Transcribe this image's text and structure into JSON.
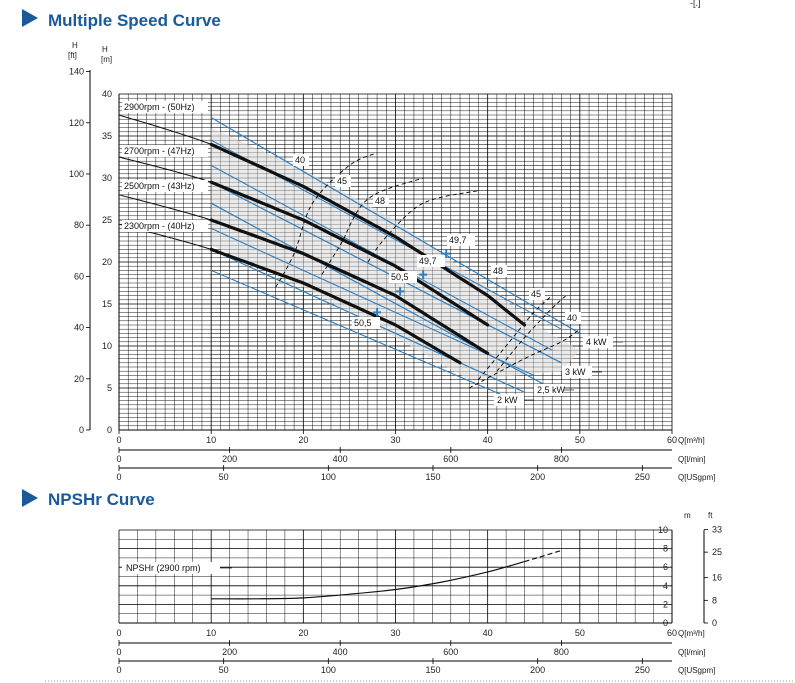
{
  "header_mark": "-[.]",
  "multiple_speed": {
    "title": "Multiple Speed Curve",
    "axis_left_ft": {
      "label": "H",
      "unit": "[ft]",
      "ticks": [
        0,
        20,
        40,
        60,
        80,
        100,
        120,
        140
      ]
    },
    "axis_left_m": {
      "label": "H",
      "unit": "[m]",
      "ticks": [
        0,
        5,
        10,
        15,
        20,
        25,
        30,
        35,
        40
      ]
    },
    "axis_q_m3h": {
      "label": "Q[m³/h]",
      "ticks": [
        0,
        10,
        20,
        30,
        40,
        50,
        60
      ]
    },
    "axis_q_lmin": {
      "label": "Q[l/min]",
      "ticks": [
        0,
        200,
        400,
        600,
        800
      ]
    },
    "axis_q_usgpm": {
      "label": "Q[USgpm]",
      "ticks": [
        0,
        50,
        100,
        150,
        200,
        250
      ]
    },
    "speed_labels": [
      "2900rpm - (50Hz)",
      "2700rpm - (47Hz)",
      "2500rpm - (43Hz)",
      "2300rpm - (40Hz)"
    ],
    "power_labels": [
      "4 kW",
      "3 kW",
      "2,5 kW",
      "2 kW"
    ],
    "efficiency_labels_left": [
      "40",
      "45",
      "48",
      "49,7",
      "50,5"
    ],
    "efficiency_labels_right": [
      "49,7",
      "48",
      "45",
      "40",
      "50,5"
    ]
  },
  "npshr": {
    "title": "NPSHr Curve",
    "curve_label": "NPSHr (2900 rpm)",
    "axis_right_m": {
      "label": "m",
      "ticks": [
        0,
        2,
        4,
        6,
        8,
        10
      ]
    },
    "axis_right_ft": {
      "label": "ft",
      "ticks": [
        0,
        8,
        16,
        25,
        33
      ]
    },
    "axis_q_m3h": {
      "label": "Q[m³/h]",
      "ticks": [
        0,
        10,
        20,
        30,
        40,
        50,
        60
      ]
    },
    "axis_q_lmin": {
      "label": "Q[l/min]",
      "ticks": [
        0,
        200,
        400,
        600,
        800
      ]
    },
    "axis_q_usgpm": {
      "label": "Q[USgpm]",
      "ticks": [
        0,
        50,
        100,
        150,
        200,
        250
      ]
    }
  },
  "colors": {
    "title": "#1a5a9a",
    "power_line": "#2f7fc1",
    "curve": "#111111",
    "grid": "#000000",
    "band": "#e6e6e6",
    "marker": "#2f7fc1"
  },
  "chart_data": [
    {
      "type": "line",
      "title": "Multiple Speed Curve",
      "xlabel": "Q[m³/h]",
      "ylabel": "H [m]",
      "xlim": [
        0,
        60
      ],
      "ylim": [
        0,
        40
      ],
      "series": [
        {
          "name": "2900rpm - (50Hz)",
          "x": [
            0,
            10,
            20,
            30,
            40,
            44
          ],
          "y": [
            37.5,
            34,
            29,
            23,
            16,
            12.5
          ],
          "op_x": [
            10,
            44
          ]
        },
        {
          "name": "2700rpm - (47Hz)",
          "x": [
            0,
            10,
            20,
            30,
            40
          ],
          "y": [
            32.5,
            29.5,
            25,
            19.5,
            12.5
          ],
          "op_x": [
            10,
            40.5
          ]
        },
        {
          "name": "2500rpm - (43Hz)",
          "x": [
            0,
            10,
            20,
            30,
            38
          ],
          "y": [
            28,
            25,
            21,
            16,
            10.5
          ],
          "op_x": [
            10,
            40
          ]
        },
        {
          "name": "2300rpm - (40Hz)",
          "x": [
            0,
            10,
            20,
            30,
            37
          ],
          "y": [
            24.5,
            21.5,
            17.5,
            12.5,
            8
          ],
          "op_x": [
            10,
            37
          ]
        }
      ],
      "power_lines": [
        {
          "name": "4 kW",
          "x": [
            10,
            50
          ],
          "y": [
            37,
            10
          ]
        },
        {
          "name": "3 kW",
          "x": [
            10,
            48
          ],
          "y": [
            29,
            8
          ]
        },
        {
          "name": "2,5 kW",
          "x": [
            10,
            46
          ],
          "y": [
            27,
            6.5
          ]
        },
        {
          "name": "2 kW",
          "x": [
            10,
            44
          ],
          "y": [
            21,
            4.5
          ]
        }
      ],
      "efficiency_lines": [
        {
          "name": "40",
          "x": [
            17,
            25,
            28,
            40,
            48
          ],
          "y": [
            17,
            31,
            35,
            16,
            12
          ]
        },
        {
          "name": "45",
          "x": [
            22,
            33,
            43
          ],
          "y": [
            18,
            30,
            14
          ]
        },
        {
          "name": "48",
          "x": [
            27,
            39,
            45,
            42
          ],
          "y": [
            20,
            28,
            18,
            8
          ]
        },
        {
          "name": "49,7",
          "x": [
            35,
            35
          ],
          "y": [
            22,
            21
          ]
        },
        {
          "name": "50,5",
          "x": [
            28,
            31.5
          ],
          "y": [
            14.5,
            17
          ]
        }
      ],
      "efficiency_markers": [
        {
          "name": "49,7",
          "x": 35.5,
          "y": 21
        },
        {
          "name": "49,7",
          "x": 33,
          "y": 18.5
        },
        {
          "name": "50,5",
          "x": 30.5,
          "y": 16.5
        },
        {
          "name": "50,5",
          "x": 28,
          "y": 14
        }
      ]
    },
    {
      "type": "line",
      "title": "NPSHr Curve",
      "xlabel": "Q[m³/h]",
      "ylabel": "m",
      "xlim": [
        0,
        60
      ],
      "ylim": [
        0,
        10
      ],
      "series": [
        {
          "name": "NPSHr (2900 rpm)",
          "x": [
            10,
            15,
            20,
            25,
            30,
            35,
            40,
            44,
            48
          ],
          "y": [
            2.6,
            2.6,
            2.7,
            3.1,
            3.6,
            4.4,
            5.5,
            6.6,
            7.8
          ]
        }
      ]
    }
  ]
}
